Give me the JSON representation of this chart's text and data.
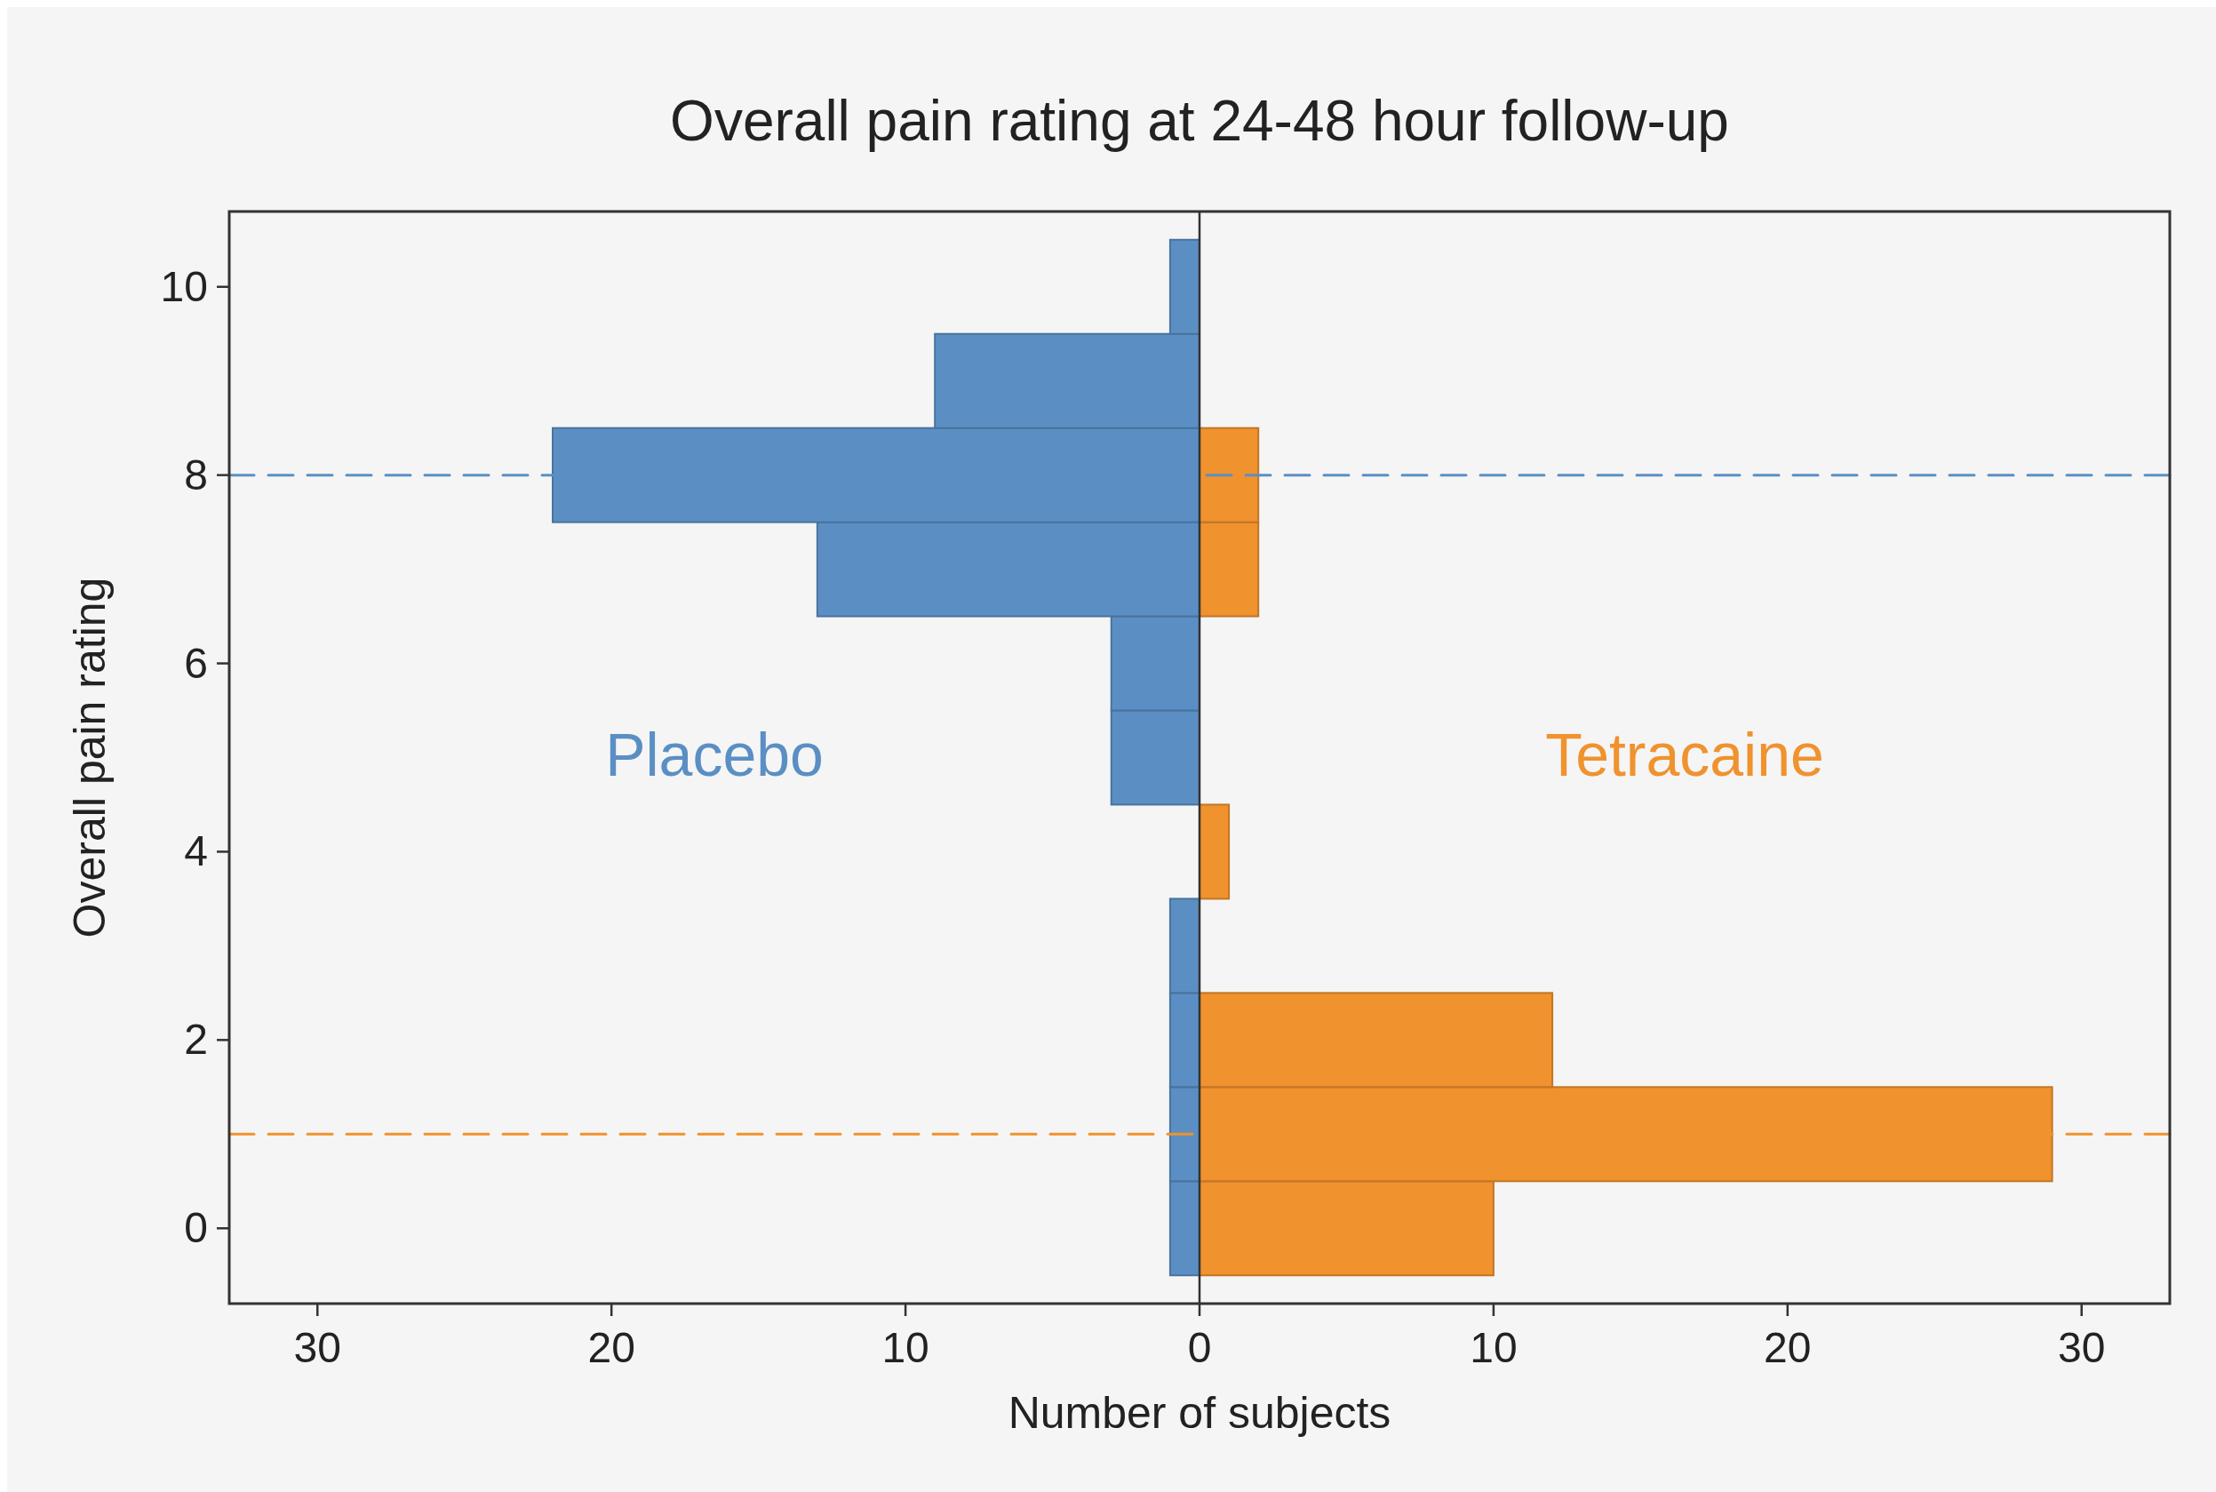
{
  "chart_data": {
    "type": "bar",
    "orientation": "horizontal",
    "title": "Overall pain rating at 24-48 hour follow-up",
    "xlabel": "Number of subjects",
    "ylabel": "Overall pain rating",
    "x": [
      0,
      1,
      2,
      3,
      4,
      5,
      6,
      7,
      8,
      9,
      10
    ],
    "series": [
      {
        "name": "Placebo",
        "color": "#5b8fc4",
        "values": [
          -1,
          -1,
          -1,
          -1,
          0,
          -3,
          -3,
          -13,
          -22,
          -9,
          -1
        ]
      },
      {
        "name": "Tetracaine",
        "color": "#f0922e",
        "values": [
          10,
          29,
          12,
          0,
          1,
          0,
          0,
          2,
          2,
          0,
          0
        ]
      }
    ],
    "xlim": [
      -33,
      33
    ],
    "xticks": [
      {
        "value": -30,
        "label": "30"
      },
      {
        "value": -20,
        "label": "20"
      },
      {
        "value": -10,
        "label": "10"
      },
      0,
      10,
      20,
      30
    ],
    "ylim": [
      -0.8,
      10.8
    ],
    "yticks": [
      0,
      2,
      4,
      6,
      8,
      10
    ],
    "ref_lines": [
      {
        "axis": "y",
        "value": 8,
        "color": "#5b8fc4",
        "line_style": "dashed"
      },
      {
        "axis": "y",
        "value": 1,
        "color": "#f0922e",
        "line_style": "dashed"
      }
    ],
    "grid": false
  }
}
